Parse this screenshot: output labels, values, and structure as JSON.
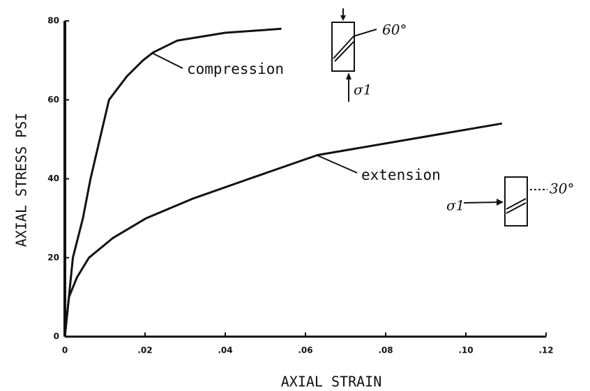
{
  "chart_data": {
    "type": "line",
    "xlabel": "AXIAL STRAIN",
    "ylabel": "AXIAL STRESS  PSI",
    "xlim": [
      0,
      0.12
    ],
    "ylim": [
      0,
      80
    ],
    "xticks": [
      {
        "value": 0,
        "label": "0"
      },
      {
        "value": 0.02,
        "label": ".02"
      },
      {
        "value": 0.04,
        "label": ".04"
      },
      {
        "value": 0.06,
        "label": ".06"
      },
      {
        "value": 0.08,
        "label": ".08"
      },
      {
        "value": 0.1,
        "label": ".10"
      },
      {
        "value": 0.12,
        "label": ".12"
      }
    ],
    "yticks": [
      0,
      20,
      40,
      60,
      80
    ],
    "series": [
      {
        "name": "compression",
        "color": "#111111",
        "x": [
          0,
          0.001,
          0.002,
          0.0045,
          0.0064,
          0.011,
          0.0155,
          0.0195,
          0.022,
          0.028,
          0.04,
          0.054
        ],
        "values": [
          0,
          10,
          20,
          30,
          40,
          60,
          66,
          70,
          72,
          75,
          77,
          78
        ]
      },
      {
        "name": "extension",
        "color": "#111111",
        "x": [
          0,
          0.001,
          0.003,
          0.006,
          0.012,
          0.0203,
          0.032,
          0.046,
          0.063,
          0.086,
          0.109
        ],
        "values": [
          0,
          10,
          15,
          20,
          25,
          30,
          35,
          40,
          46,
          50,
          54
        ]
      }
    ],
    "annotations": [
      "60°",
      "σ1",
      "30°",
      "σ1"
    ]
  }
}
